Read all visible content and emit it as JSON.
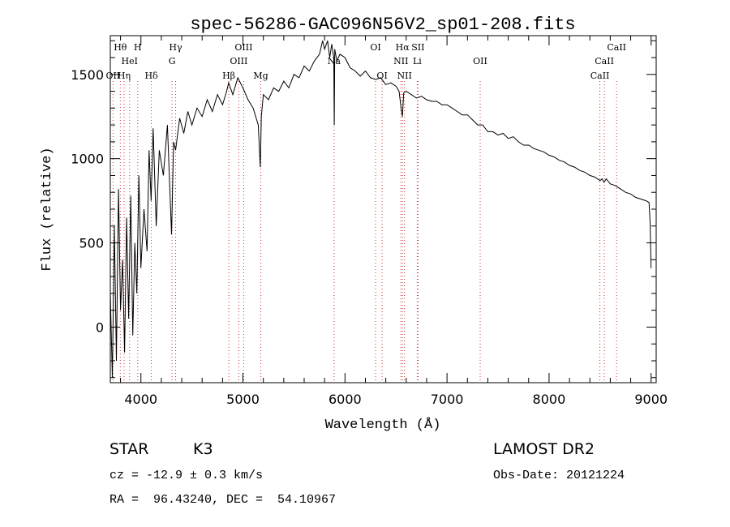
{
  "chart_data": {
    "type": "line",
    "title": "spec-56286-GAC096N56V2_sp01-208.fits",
    "xlabel": "Wavelength (Å)",
    "ylabel": "Flux (relative)",
    "xlim": [
      3700,
      9050
    ],
    "ylim": [
      -330,
      1730
    ],
    "xticks": [
      4000,
      5000,
      6000,
      7000,
      8000,
      9000
    ],
    "yticks": [
      0,
      500,
      1000,
      1500
    ],
    "grid": false,
    "series": [
      {
        "values_x": [
          3700,
          3720,
          3740,
          3760,
          3780,
          3800,
          3820,
          3840,
          3860,
          3880,
          3900,
          3920,
          3940,
          3960,
          3980,
          4000,
          4030,
          4060,
          4080,
          4100,
          4120,
          4150,
          4180,
          4220,
          4260,
          4300,
          4320,
          4340,
          4380,
          4420,
          4460,
          4500,
          4550,
          4600,
          4650,
          4700,
          4750,
          4800,
          4840,
          4860,
          4900,
          4950,
          5000,
          5050,
          5100,
          5150,
          5170,
          5180,
          5200,
          5250,
          5300,
          5350,
          5400,
          5450,
          5500,
          5550,
          5600,
          5650,
          5700,
          5750,
          5780,
          5800,
          5830,
          5850,
          5870,
          5890,
          5895,
          5900,
          5920,
          5950,
          6000,
          6050,
          6100,
          6150,
          6200,
          6250,
          6300,
          6350,
          6400,
          6450,
          6500,
          6530,
          6550,
          6563,
          6575,
          6600,
          6650,
          6700,
          6750,
          6800,
          6850,
          6900,
          6950,
          7000,
          7050,
          7100,
          7150,
          7200,
          7250,
          7300,
          7350,
          7400,
          7450,
          7500,
          7550,
          7600,
          7650,
          7700,
          7750,
          7800,
          7850,
          7900,
          7950,
          8000,
          8050,
          8100,
          8150,
          8200,
          8250,
          8300,
          8350,
          8400,
          8450,
          8500,
          8520,
          8540,
          8560,
          8600,
          8650,
          8700,
          8750,
          8800,
          8850,
          8900,
          8950,
          8980,
          8990,
          9000
        ],
        "values_y": [
          200,
          -300,
          600,
          -200,
          820,
          100,
          400,
          -150,
          650,
          50,
          780,
          -50,
          500,
          200,
          900,
          350,
          700,
          450,
          1050,
          750,
          1180,
          600,
          1050,
          900,
          1200,
          550,
          1100,
          1050,
          1240,
          1150,
          1280,
          1200,
          1300,
          1250,
          1350,
          1280,
          1380,
          1320,
          1400,
          1450,
          1380,
          1480,
          1420,
          1350,
          1300,
          1200,
          950,
          1250,
          1380,
          1350,
          1420,
          1400,
          1460,
          1420,
          1500,
          1480,
          1550,
          1520,
          1580,
          1620,
          1700,
          1650,
          1700,
          1600,
          1680,
          1600,
          1200,
          1650,
          1580,
          1620,
          1600,
          1540,
          1520,
          1490,
          1520,
          1480,
          1470,
          1480,
          1440,
          1450,
          1430,
          1400,
          1300,
          1250,
          1390,
          1400,
          1380,
          1360,
          1370,
          1350,
          1340,
          1340,
          1320,
          1320,
          1300,
          1280,
          1260,
          1260,
          1230,
          1200,
          1200,
          1160,
          1160,
          1140,
          1150,
          1120,
          1130,
          1100,
          1080,
          1080,
          1060,
          1050,
          1040,
          1020,
          1010,
          990,
          980,
          960,
          950,
          930,
          920,
          900,
          890,
          870,
          880,
          860,
          880,
          850,
          840,
          820,
          800,
          790,
          770,
          760,
          750,
          740,
          620,
          350
        ]
      }
    ],
    "lines": [
      {
        "name": "Hθ",
        "x": 3798,
        "row": 1
      },
      {
        "name": "Hη",
        "x": 3835,
        "row": 3
      },
      {
        "name": "OII",
        "x": 3727,
        "row": 3
      },
      {
        "name": "HeI",
        "x": 3889,
        "row": 2
      },
      {
        "name": "H",
        "x": 3969,
        "row": 1
      },
      {
        "name": "Hδ",
        "x": 4102,
        "row": 3
      },
      {
        "name": "Hγ",
        "x": 4340,
        "row": 1
      },
      {
        "name": "G",
        "x": 4305,
        "row": 2
      },
      {
        "name": "Hβ",
        "x": 4861,
        "row": 3
      },
      {
        "name": "OIII",
        "x": 4959,
        "row": 2
      },
      {
        "name": "OIII",
        "x": 5007,
        "row": 1
      },
      {
        "name": "Mg",
        "x": 5175,
        "row": 3
      },
      {
        "name": "Na",
        "x": 5893,
        "row": 2
      },
      {
        "name": "OI",
        "x": 6300,
        "row": 1
      },
      {
        "name": "OI",
        "x": 6364,
        "row": 3
      },
      {
        "name": "NII",
        "x": 6548,
        "row": 2
      },
      {
        "name": "Hα",
        "x": 6563,
        "row": 1
      },
      {
        "name": "NII",
        "x": 6583,
        "row": 3
      },
      {
        "name": "SII",
        "x": 6716,
        "row": 1
      },
      {
        "name": "Li",
        "x": 6708,
        "row": 2
      },
      {
        "name": "OII",
        "x": 7325,
        "row": 2
      },
      {
        "name": "CaII",
        "x": 8498,
        "row": 3
      },
      {
        "name": "CaII",
        "x": 8542,
        "row": 2
      },
      {
        "name": "CaII",
        "x": 8662,
        "row": 1
      }
    ]
  },
  "info": {
    "class": "STAR",
    "subclass": "K3",
    "survey": "LAMOST DR2",
    "cz": "cz = -12.9 ± 0.3 km/s",
    "obsdate": "Obs-Date: 20121224",
    "coords": "RA =  96.43240, DEC =  54.10967"
  },
  "colors": {
    "line_marker": "#cc3333",
    "axis": "#000000"
  }
}
